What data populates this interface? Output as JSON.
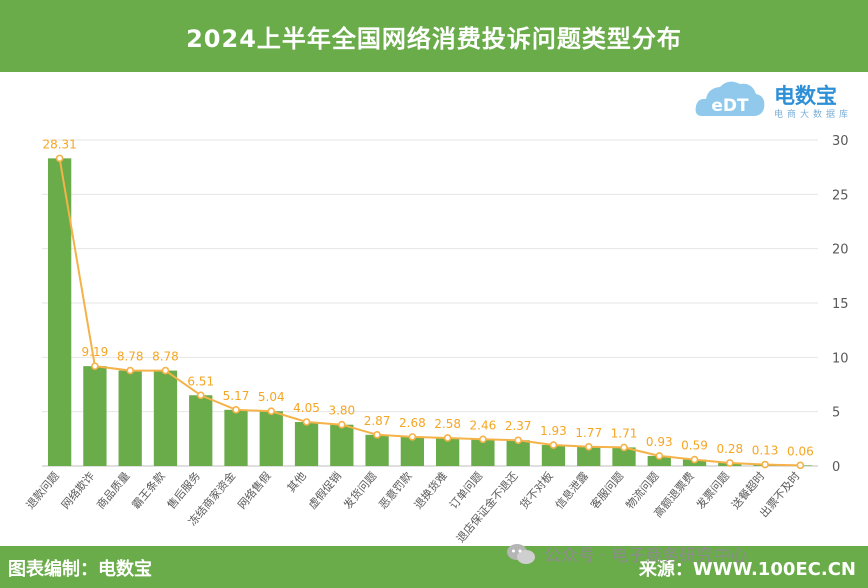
{
  "header": {
    "title": "2024上半年全国网络消费投诉问题类型分布"
  },
  "logo": {
    "mark_text": "eDT",
    "name": "电数宝",
    "subtitle": "电商大数据库"
  },
  "footer": {
    "left": "图表编制：电数宝",
    "right": "来源：WWW.100EC.CN"
  },
  "watermark": {
    "text": "公众号 · 电子商务研究中心",
    "icon": "wechat-icon"
  },
  "colors": {
    "header": "#6aac4a",
    "bar": "#6aac4a",
    "line": "#f5b248",
    "label": "#f5a623",
    "axis_text": "#595959",
    "grid": "#e6e6e6"
  },
  "chart_data": {
    "type": "bar",
    "title": "2024上半年全国网络消费投诉问题类型分布",
    "unit": "%",
    "categories": [
      "退款问题",
      "网络欺诈",
      "商品质量",
      "霸王条款",
      "售后服务",
      "冻结商家资金",
      "网络售假",
      "其他",
      "虚假促销",
      "发货问题",
      "恶意罚款",
      "退换货难",
      "订单问题",
      "退店保证金不退还",
      "货不对板",
      "信息泄露",
      "客服问题",
      "物流问题",
      "高额退票费",
      "发票问题",
      "送餐超时",
      "出票不及时"
    ],
    "values": [
      28.31,
      9.19,
      8.78,
      8.78,
      6.51,
      5.17,
      5.04,
      4.05,
      3.8,
      2.87,
      2.68,
      2.58,
      2.46,
      2.37,
      1.93,
      1.77,
      1.71,
      0.93,
      0.59,
      0.28,
      0.13,
      0.06
    ],
    "value_labels": [
      "28.31",
      "9.19",
      "8.78",
      "8.78",
      "6.51",
      "5.17",
      "5.04",
      "4.05",
      "3.80",
      "2.87",
      "2.68",
      "2.58",
      "2.46",
      "2.37",
      "1.93",
      "1.77",
      "1.71",
      "0.93",
      "0.59",
      "0.28",
      "0.13",
      "0.06"
    ],
    "line_overlay": true,
    "yaxis_side": "right",
    "ylim": [
      0,
      30
    ],
    "yticks": [
      0,
      5,
      10,
      15,
      20,
      25,
      30
    ],
    "grid": true,
    "legend": false
  }
}
